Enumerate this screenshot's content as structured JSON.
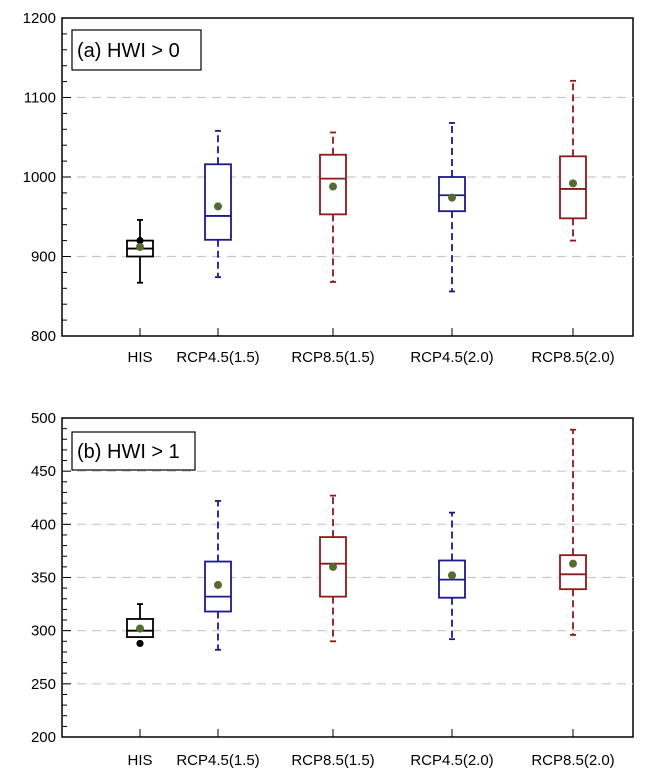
{
  "colors": {
    "black": "#000000",
    "blue": "#1a1a8c",
    "red": "#8b1a1a",
    "mean_dot": "#556b2f",
    "grid": "#c8c8c8"
  },
  "chart_data": [
    {
      "type": "box",
      "panel_label": "(a) HWI > 0",
      "categories": [
        "HIS",
        "RCP4.5(1.5)",
        "RCP8.5(1.5)",
        "RCP4.5(2.0)",
        "RCP8.5(2.0)"
      ],
      "ylim": [
        800,
        1200
      ],
      "yticks": [
        800,
        900,
        1000,
        1100,
        1200
      ],
      "ytick_labels": [
        "800",
        "900",
        "1000",
        "1100",
        "1200"
      ],
      "grid": "horizontal dashed at major ticks",
      "boxes": [
        {
          "category": "HIS",
          "color": "black",
          "whisker_low": 867,
          "q1": 900,
          "median": 910,
          "q3": 920,
          "whisker_high": 946,
          "mean": 912,
          "outliers": [
            920
          ]
        },
        {
          "category": "RCP4.5(1.5)",
          "color": "blue",
          "whisker_low": 874,
          "q1": 921,
          "median": 951,
          "q3": 1016,
          "whisker_high": 1058,
          "mean": 963,
          "outliers": []
        },
        {
          "category": "RCP8.5(1.5)",
          "color": "red",
          "whisker_low": 868,
          "q1": 953,
          "median": 998,
          "q3": 1028,
          "whisker_high": 1056,
          "mean": 988,
          "outliers": []
        },
        {
          "category": "RCP4.5(2.0)",
          "color": "blue",
          "whisker_low": 856,
          "q1": 957,
          "median": 977,
          "q3": 1000,
          "whisker_high": 1068,
          "mean": 974,
          "outliers": []
        },
        {
          "category": "RCP8.5(2.0)",
          "color": "red",
          "whisker_low": 920,
          "q1": 948,
          "median": 985,
          "q3": 1026,
          "whisker_high": 1121,
          "mean": 992,
          "outliers": []
        }
      ]
    },
    {
      "type": "box",
      "panel_label": "(b) HWI > 1",
      "categories": [
        "HIS",
        "RCP4.5(1.5)",
        "RCP8.5(1.5)",
        "RCP4.5(2.0)",
        "RCP8.5(2.0)"
      ],
      "ylim": [
        200,
        500
      ],
      "yticks": [
        200,
        250,
        300,
        350,
        400,
        450,
        500
      ],
      "ytick_labels": [
        "200",
        "250",
        "300",
        "350",
        "400",
        "450",
        "500"
      ],
      "grid": "horizontal dashed at major ticks",
      "boxes": [
        {
          "category": "HIS",
          "color": "black",
          "whisker_low": 294,
          "q1": 294,
          "median": 300,
          "q3": 311,
          "whisker_high": 325,
          "mean": 302,
          "outliers": [
            288
          ]
        },
        {
          "category": "RCP4.5(1.5)",
          "color": "blue",
          "whisker_low": 282,
          "q1": 318,
          "median": 332,
          "q3": 365,
          "whisker_high": 422,
          "mean": 343,
          "outliers": []
        },
        {
          "category": "RCP8.5(1.5)",
          "color": "red",
          "whisker_low": 290,
          "q1": 332,
          "median": 363,
          "q3": 388,
          "whisker_high": 427,
          "mean": 360,
          "outliers": []
        },
        {
          "category": "RCP4.5(2.0)",
          "color": "blue",
          "whisker_low": 292,
          "q1": 331,
          "median": 348,
          "q3": 366,
          "whisker_high": 411,
          "mean": 352,
          "outliers": []
        },
        {
          "category": "RCP8.5(2.0)",
          "color": "red",
          "whisker_low": 296,
          "q1": 339,
          "median": 353,
          "q3": 371,
          "whisker_high": 489,
          "mean": 363,
          "outliers": []
        }
      ]
    }
  ]
}
